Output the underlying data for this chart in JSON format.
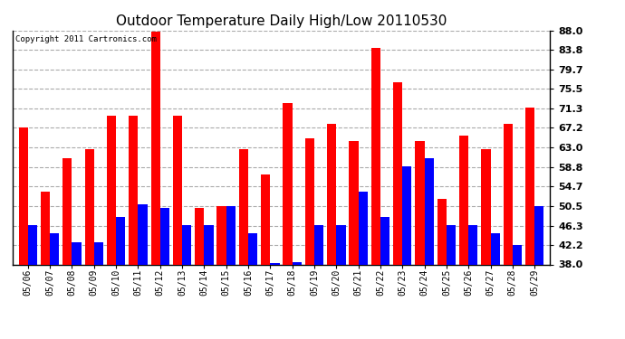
{
  "title": "Outdoor Temperature Daily High/Low 20110530",
  "copyright": "Copyright 2011 Cartronics.com",
  "dates": [
    "05/06",
    "05/07",
    "05/08",
    "05/09",
    "05/10",
    "05/11",
    "05/12",
    "05/13",
    "05/14",
    "05/15",
    "05/16",
    "05/17",
    "05/18",
    "05/19",
    "05/20",
    "05/21",
    "05/22",
    "05/23",
    "05/24",
    "05/25",
    "05/26",
    "05/27",
    "05/28",
    "05/29"
  ],
  "highs": [
    67.2,
    53.6,
    60.8,
    62.6,
    69.8,
    69.8,
    87.8,
    69.8,
    50.0,
    50.5,
    62.6,
    57.2,
    72.5,
    65.0,
    68.0,
    64.4,
    84.2,
    77.0,
    64.4,
    52.0,
    65.5,
    62.6,
    68.0,
    71.6
  ],
  "lows": [
    46.4,
    44.6,
    42.8,
    42.8,
    48.2,
    50.9,
    50.0,
    46.4,
    46.4,
    50.5,
    44.6,
    38.3,
    38.5,
    46.4,
    46.4,
    53.6,
    48.2,
    59.0,
    60.8,
    46.4,
    46.4,
    44.6,
    42.2,
    50.5
  ],
  "high_color": "#ff0000",
  "low_color": "#0000ff",
  "bg_color": "#ffffff",
  "plot_bg_color": "#ffffff",
  "grid_color": "#aaaaaa",
  "ylim": [
    38.0,
    88.0
  ],
  "yticks": [
    38.0,
    42.2,
    46.3,
    50.5,
    54.7,
    58.8,
    63.0,
    67.2,
    71.3,
    75.5,
    79.7,
    83.8,
    88.0
  ]
}
